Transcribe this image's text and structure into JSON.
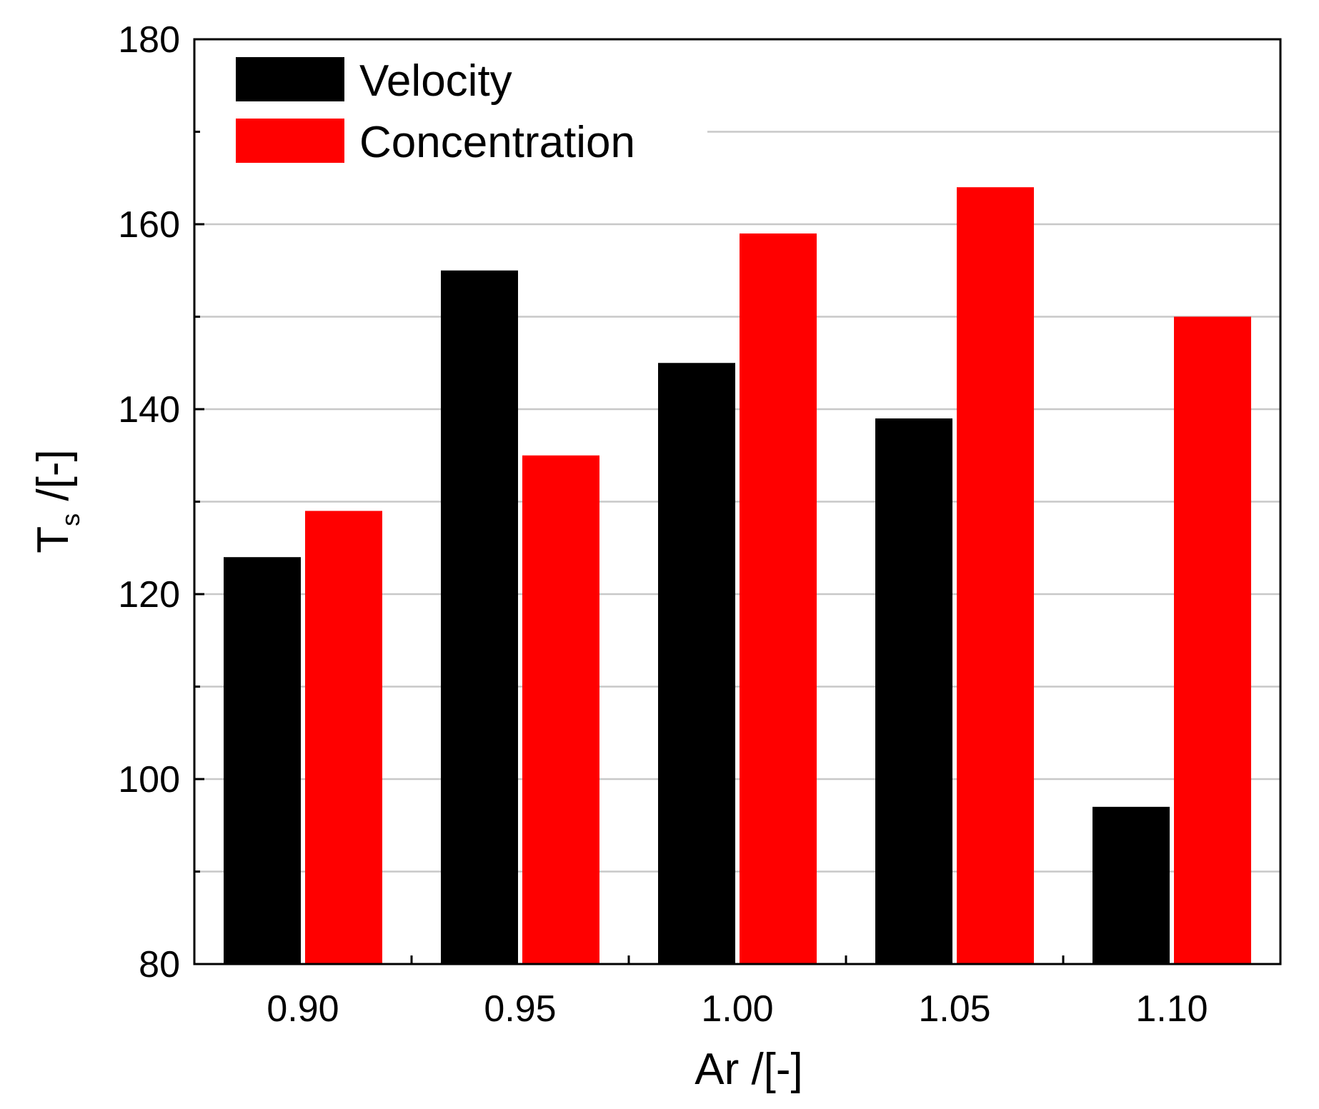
{
  "chart_data": {
    "type": "bar",
    "categories": [
      "0.90",
      "0.95",
      "1.00",
      "1.05",
      "1.10"
    ],
    "series": [
      {
        "name": "Velocity",
        "color": "#000000",
        "values": [
          124,
          155,
          145,
          139,
          97
        ]
      },
      {
        "name": "Concentration",
        "color": "#ff0000",
        "values": [
          129,
          135,
          159,
          164,
          150
        ]
      }
    ],
    "xlabel": "Ar /[-]",
    "ylabel": {
      "main": "T",
      "subscript": "s",
      "unit": " /[-]"
    },
    "ylim": [
      80,
      180
    ],
    "yticks": [
      80,
      100,
      120,
      140,
      160,
      180
    ],
    "yticks_minor": [
      90,
      110,
      130,
      150,
      170
    ],
    "ytick_labels": [
      "80",
      "100",
      "120",
      "140",
      "160",
      "180"
    ],
    "grid": true,
    "legend_position": "top-left"
  }
}
